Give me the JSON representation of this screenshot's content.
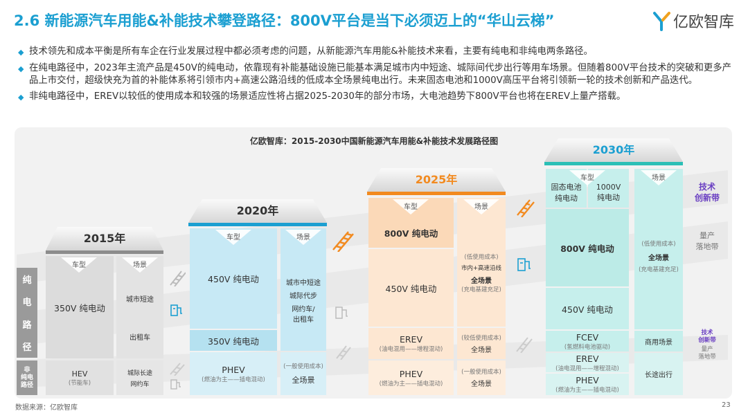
{
  "header": {
    "title": "2.6 新能源汽车用能&补能技术攀登路径：800V平台是当下必须迈上的“华山云梯”",
    "logo_text": "亿欧智库"
  },
  "bullets": [
    "技术领先和成本平衡是所有车企在行业发展过程中都必须考虑的问题，从新能源汽车用能&补能技术来看，主要有纯电和非纯电两条路径。",
    "在纯电路径中，2023年主流产品是450V的纯电动，依靠现有补能基础设施已能基本满足城市内中短途、城际间代步出行等用车场景。但随着800V平台技术的突破和更多产品上市交付，超级快充为首的补能体系将引领市内+高速公路沿线的低成本全场景纯电出行。未来固态电池和1000V高压平台将引领新一轮的技术创新和产品迭代。",
    "非纯电路径中，EREV以较低的使用成本和较强的场景适应性将占据2025-2030年的部分市场，大电池趋势下800V平台也将在EREV上量产搭载。"
  ],
  "diagram": {
    "title": "亿欧智库：2015-2030中国新能源汽车用能&补能技术发展路径图",
    "side_labels": {
      "bev": [
        "纯",
        "电",
        "路",
        "径"
      ],
      "non_bev": [
        "非",
        "纯电",
        "路径"
      ]
    },
    "right_labels": {
      "innovation": [
        "技术",
        "创新带"
      ],
      "mass": [
        "量产",
        "落地带"
      ],
      "innovation_small": [
        "技术",
        "创新带"
      ],
      "mass_small": [
        "量产",
        "落地带"
      ]
    },
    "col_labels": {
      "model": "车型",
      "scene": "场景"
    },
    "y2015": {
      "year": "2015年",
      "bev": "350V 纯电动",
      "scene1": "城市短途",
      "scene2": "出租车",
      "hev": "HEV",
      "hev_sub": "(节能车)",
      "scene3a": "城际长途",
      "scene3b": "网约车"
    },
    "y2020": {
      "year": "2020年",
      "bev_top": "450V 纯电动",
      "bev_low": "350V 纯电动",
      "scene_lines": [
        "城市中短途",
        "城际代步",
        "网约车/",
        "出租车"
      ],
      "phev": "PHEV",
      "phev_sub": "(燃油为主——插电混动)",
      "scene_low_sub": "(一般使用成本)",
      "scene_low": "全场景"
    },
    "y2025": {
      "year": "2025年",
      "bev_top": "800V 纯电动",
      "bev_mid": "450V 纯电动",
      "scene_top_sub": "(低使用成本)",
      "scene_top_a": "市内+高速沿线",
      "scene_top_b": "全场景",
      "scene_top_c": "(充电基建充足)",
      "erev": "EREV",
      "erev_sub": "(油电混用——增程混动)",
      "erev_scene_sub": "(较低使用成本)",
      "erev_scene": "全场景",
      "phev": "PHEV",
      "phev_sub": "(燃油为主——插电混动)",
      "phev_scene_sub": "(一般使用成本)",
      "phev_scene": "全场景"
    },
    "y2030": {
      "year": "2030年",
      "solid_a": "固态电池",
      "solid_b": "纯电动",
      "hv_a": "1000V",
      "hv_b": "纯电动",
      "bev800": "800V 纯电动",
      "bev450": "450V 纯电动",
      "scene_top_sub": "(低使用成本)",
      "scene_top": "全场景",
      "scene_top_c": "(充电基建充足)",
      "fcev": "FCEV",
      "fcev_sub": "(氢燃料电池驱动)",
      "fcev_scene": "商用场景",
      "erev": "EREV",
      "erev_sub": "(油电混用——增程混动)",
      "phev": "PHEV",
      "phev_sub": "(燃油为主——插电混动)",
      "low_scene": "长途出行"
    }
  },
  "footer": {
    "source": "数据来源：亿欧智库",
    "page": "23"
  },
  "colors": {
    "accent": "#1b9fd1",
    "orange": "#f28a1f",
    "teal": "#2bbfb6",
    "purple": "#6a3fc2"
  }
}
